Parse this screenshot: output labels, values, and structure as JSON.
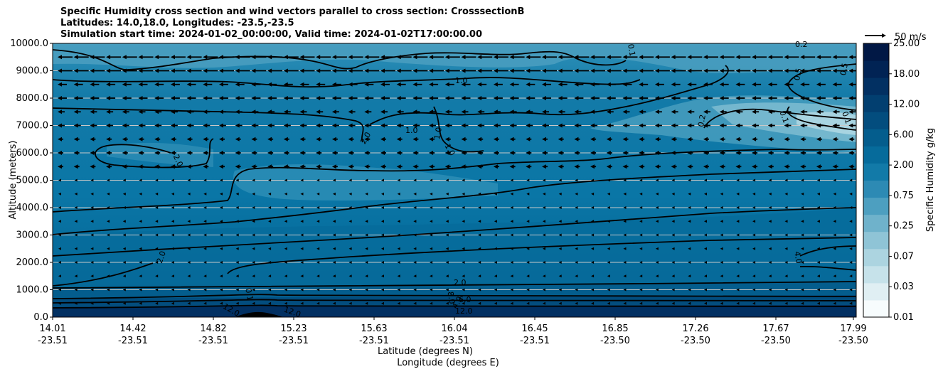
{
  "chart_data": {
    "type": "contour",
    "title_lines": [
      "Specific Humidity cross section and wind vectors parallel to cross section: CrosssectionB",
      "Latitudes: 14.0,18.0, Longitudes: -23.5,-23.5",
      "Simulation start time: 2024-01-02_00:00:00, Valid time: 2024-01-02T17:00:00.00"
    ],
    "ylabel": "Altitude (meters)",
    "xlabel_lat": "Latitude (degrees N)",
    "xlabel_lon": "Longitude (degrees E)",
    "ylim": [
      0,
      10000
    ],
    "y_ticks": [
      0,
      1000,
      2000,
      3000,
      4000,
      5000,
      6000,
      7000,
      8000,
      9000,
      10000
    ],
    "y_tick_labels": [
      "0.0",
      "1000.0",
      "2000.0",
      "3000.0",
      "4000.0",
      "5000.0",
      "6000.0",
      "7000.0",
      "8000.0",
      "9000.0",
      "10000.0"
    ],
    "x_tick_lat": [
      "14.01",
      "14.42",
      "14.82",
      "15.23",
      "15.63",
      "16.04",
      "16.45",
      "16.85",
      "17.26",
      "17.67",
      "17.99"
    ],
    "x_tick_lon": [
      "-23.51",
      "-23.51",
      "-23.51",
      "-23.51",
      "-23.51",
      "-23.51",
      "-23.51",
      "-23.50",
      "-23.50",
      "-23.50",
      "-23.50"
    ],
    "quiver_key_label": "50 m/s",
    "colorbar": {
      "label": "Specific Humidity g/kg",
      "tick_labels": [
        "0.01",
        "0.03",
        "0.07",
        "0.25",
        "0.75",
        "2.00",
        "6.00",
        "12.00",
        "18.00",
        "25.00"
      ],
      "colors": [
        "#f7fcfd",
        "#e0eff3",
        "#c6e2ea",
        "#acd4e0",
        "#8fc4d6",
        "#6fb2cb",
        "#4d9fc0",
        "#2d8ab4",
        "#127aa8",
        "#066b9b",
        "#045d8d",
        "#034d7e",
        "#023f70",
        "#023062",
        "#012354",
        "#011845"
      ]
    },
    "contour_labels": [
      "1.0",
      "2.0",
      "1.0",
      "1.0",
      "1.0",
      "2.0",
      "2.0",
      "2.0",
      "0.1",
      "12.0",
      "12.0",
      "0.5",
      "0.2",
      "0.1",
      "0.1",
      "0.2",
      "0.5",
      "4.0",
      "12.0",
      "0.1",
      "4.0",
      "6.0",
      "8.0"
    ]
  }
}
